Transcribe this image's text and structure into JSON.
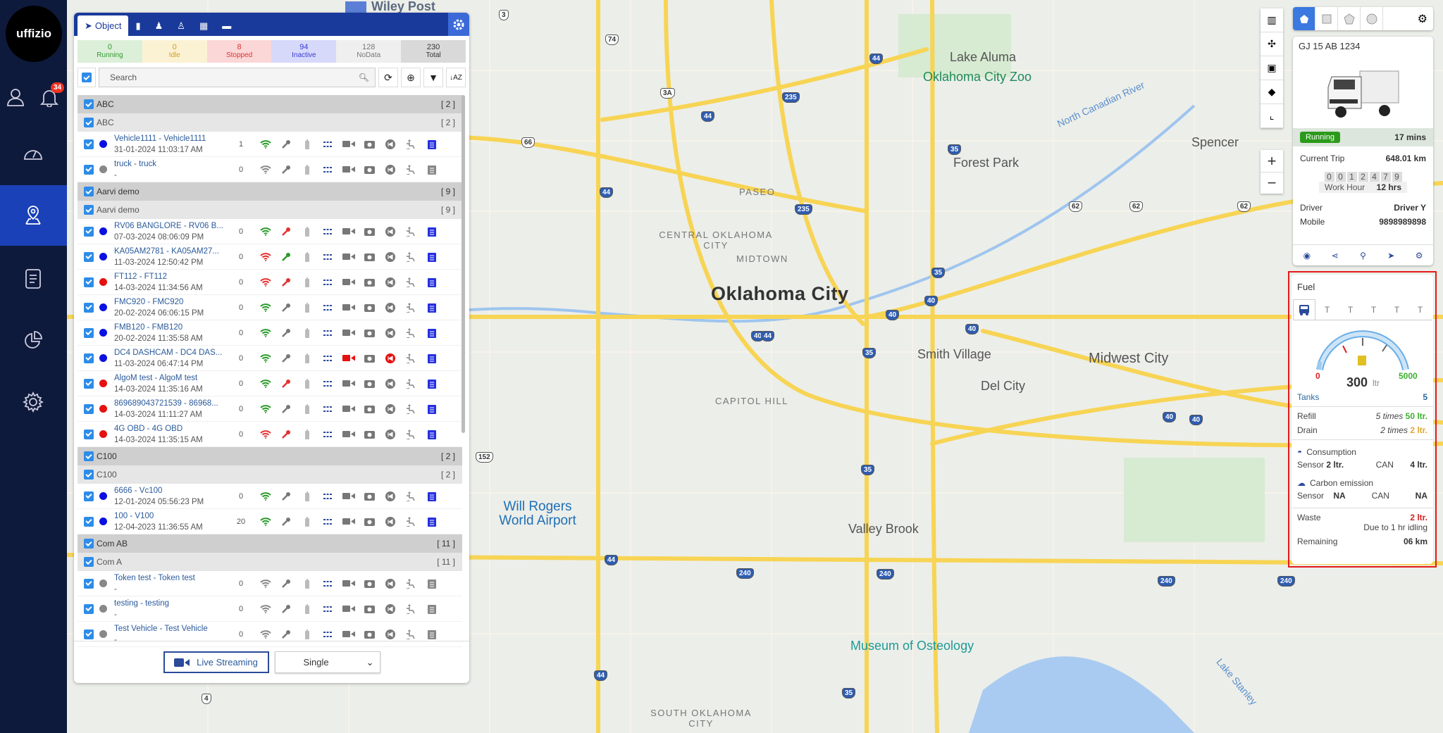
{
  "app": {
    "logo": "uffizio",
    "notification_count": "34"
  },
  "sidebar": {
    "items": [
      {
        "icon": "dashboard-gauge-icon"
      },
      {
        "icon": "tracking-map-pin-icon",
        "active": true
      },
      {
        "icon": "reports-document-icon"
      },
      {
        "icon": "analytics-pie-icon"
      },
      {
        "icon": "settings-gear-icon"
      }
    ]
  },
  "map": {
    "labels": {
      "city": "Oklahoma City",
      "forest_park": "Forest Park",
      "lake_aluma": "Lake Aluma",
      "zoo": "Oklahoma City Zoo",
      "spencer": "Spencer",
      "paseo": "PASEO",
      "central": "CENTRAL OKLAHOMA CITY",
      "midtown": "MIDTOWN",
      "smith": "Smith Village",
      "midwest": "Midwest City",
      "del_city": "Del City",
      "capitol": "CAPITOL HILL",
      "airport": "Will Rogers World Airport",
      "valley": "Valley Brook",
      "museum": "Museum of Osteology",
      "south": "SOUTH OKLAHOMA CITY",
      "river": "North Canadian River",
      "lake_stanley": "Lake Stanley",
      "wiley": "Wiley Post"
    },
    "shields": [
      "3",
      "74",
      "3A",
      "66",
      "44",
      "235",
      "44",
      "35",
      "44",
      "235",
      "35",
      "40",
      "40",
      "40",
      "40",
      "35",
      "40",
      "44",
      "35",
      "44",
      "240",
      "240",
      "240",
      "240",
      "35",
      "44",
      "4",
      "152",
      "62",
      "62",
      "62",
      "40"
    ]
  },
  "panel": {
    "tabs": {
      "object": "Object"
    },
    "stats": [
      {
        "value": "0",
        "label": "Running",
        "color": "#2e9a2e",
        "bg": "#dcefd9"
      },
      {
        "value": "0",
        "label": "Idle",
        "color": "#d4a017",
        "bg": "#fbf2d4"
      },
      {
        "value": "8",
        "label": "Stopped",
        "color": "#e53030",
        "bg": "#fbd7d7"
      },
      {
        "value": "94",
        "label": "Inactive",
        "color": "#3a3ad0",
        "bg": "#d7d9fb"
      },
      {
        "value": "128",
        "label": "NoData",
        "color": "#777",
        "bg": "#efefef"
      },
      {
        "value": "230",
        "label": "Total",
        "color": "#333",
        "bg": "#d9d9d9"
      }
    ],
    "search_placeholder": "Search",
    "groups": [
      {
        "name": "ABC",
        "count": "[ 2 ]",
        "sub": "ABC",
        "sub_count": "[ 2 ]",
        "vehicles": [
          {
            "name": "Vehicle1111 - Vehicle1111",
            "time": "31-01-2024 11:03:17 AM",
            "dot": "#0a10e0",
            "count": "1",
            "wifi": "#2a9a2a",
            "key": "#777",
            "cam": "#777",
            "rec": "#777",
            "doc": "#2530e0"
          },
          {
            "name": "truck - truck",
            "time": "-",
            "dot": "#888",
            "count": "0",
            "wifi": "#888",
            "key": "#777",
            "cam": "#777",
            "rec": "#777",
            "doc": "#888"
          }
        ]
      },
      {
        "name": "Aarvi demo",
        "count": "[ 9 ]",
        "sub": "Aarvi demo",
        "sub_count": "[ 9 ]",
        "vehicles": [
          {
            "name": "RV06 BANGLORE - RV06 B...",
            "time": "07-03-2024 08:06:09 PM",
            "dot": "#0a10e0",
            "count": "0",
            "wifi": "#2a9a2a",
            "key": "#e53030",
            "cam": "#777",
            "rec": "#777",
            "doc": "#2530e0"
          },
          {
            "name": "KA05AM2781 - KA05AM27...",
            "time": "11-03-2024 12:50:42 PM",
            "dot": "#0a10e0",
            "count": "0",
            "wifi": "#e53030",
            "key": "#2a9a2a",
            "cam": "#777",
            "rec": "#777",
            "doc": "#2530e0"
          },
          {
            "name": "FT112 - FT112",
            "time": "14-03-2024 11:34:56 AM",
            "dot": "#e51010",
            "count": "0",
            "wifi": "#e53030",
            "key": "#e53030",
            "cam": "#777",
            "rec": "#777",
            "doc": "#2530e0"
          },
          {
            "name": "FMC920 - FMC920",
            "time": "20-02-2024 06:06:15 PM",
            "dot": "#0a10e0",
            "count": "0",
            "wifi": "#2a9a2a",
            "key": "#777",
            "cam": "#777",
            "rec": "#777",
            "doc": "#2530e0"
          },
          {
            "name": "FMB120 - FMB120",
            "time": "20-02-2024 11:35:58 AM",
            "dot": "#0a10e0",
            "count": "0",
            "wifi": "#2a9a2a",
            "key": "#777",
            "cam": "#777",
            "rec": "#777",
            "doc": "#2530e0"
          },
          {
            "name": "DC4 DASHCAM - DC4 DAS...",
            "time": "11-03-2024 06:47:14 PM",
            "dot": "#0a10e0",
            "count": "0",
            "wifi": "#2a9a2a",
            "key": "#777",
            "cam": "#e51010",
            "rec": "#e51010",
            "doc": "#2530e0"
          },
          {
            "name": "AlgoM test - AlgoM test",
            "time": "14-03-2024 11:35:16 AM",
            "dot": "#e51010",
            "count": "0",
            "wifi": "#2a9a2a",
            "key": "#e53030",
            "cam": "#777",
            "rec": "#777",
            "doc": "#2530e0"
          },
          {
            "name": "869689043721539 - 86968...",
            "time": "14-03-2024 11:11:27 AM",
            "dot": "#e51010",
            "count": "0",
            "wifi": "#2a9a2a",
            "key": "#777",
            "cam": "#777",
            "rec": "#777",
            "doc": "#2530e0"
          },
          {
            "name": "4G OBD - 4G OBD",
            "time": "14-03-2024 11:35:15 AM",
            "dot": "#e51010",
            "count": "0",
            "wifi": "#e53030",
            "key": "#e53030",
            "cam": "#777",
            "rec": "#777",
            "doc": "#2530e0"
          }
        ]
      },
      {
        "name": "C100",
        "count": "[ 2 ]",
        "sub": "C100",
        "sub_count": "[ 2 ]",
        "vehicles": [
          {
            "name": "6666 - Vc100",
            "time": "12-01-2024 05:56:23 PM",
            "dot": "#0a10e0",
            "count": "0",
            "wifi": "#2a9a2a",
            "key": "#777",
            "cam": "#777",
            "rec": "#777",
            "doc": "#2530e0"
          },
          {
            "name": "100 - V100",
            "time": "12-04-2023 11:36:55 AM",
            "dot": "#0a10e0",
            "count": "20",
            "wifi": "#2a9a2a",
            "key": "#777",
            "cam": "#777",
            "rec": "#777",
            "doc": "#2530e0"
          }
        ]
      },
      {
        "name": "Com AB",
        "count": "[ 11 ]",
        "sub": "Com A",
        "sub_count": "[ 11 ]",
        "vehicles": [
          {
            "name": "Token test - Token test",
            "time": "-",
            "dot": "#888",
            "count": "0",
            "wifi": "#888",
            "key": "#777",
            "cam": "#777",
            "rec": "#777",
            "doc": "#888"
          },
          {
            "name": "testing - testing",
            "time": "-",
            "dot": "#888",
            "count": "0",
            "wifi": "#888",
            "key": "#777",
            "cam": "#777",
            "rec": "#777",
            "doc": "#888"
          },
          {
            "name": "Test Vehicle - Test Vehicle",
            "time": "-",
            "dot": "#888",
            "count": "0",
            "wifi": "#888",
            "key": "#777",
            "cam": "#777",
            "rec": "#777",
            "doc": "#888"
          }
        ]
      }
    ],
    "footer": {
      "live_streaming": "Live Streaming",
      "mode": "Single"
    }
  },
  "vehicle_card": {
    "plate": "GJ 15 AB 1234",
    "status": "Running",
    "status_color": "#2a9a1a",
    "duration": "17 mins",
    "current_trip_label": "Current Trip",
    "current_trip": "648.01 km",
    "odometer": [
      "0",
      "0",
      "1",
      "2",
      "4",
      "7",
      "9"
    ],
    "work_hour_label": "Work Hour",
    "work_hour": "12 hrs",
    "driver_label": "Driver",
    "driver": "Driver Y",
    "mobile_label": "Mobile",
    "mobile": "9898989898"
  },
  "fuel": {
    "title": "Fuel",
    "gauge": {
      "min": "0",
      "max": "5000",
      "value": "300",
      "unit": "ltr",
      "min_color": "#e02020",
      "max_color": "#3cb030"
    },
    "tanks_label": "Tanks",
    "tanks": "5",
    "refill_label": "Refill",
    "refill_times": "5 times",
    "refill_amount": "50 ltr.",
    "drain_label": "Drain",
    "drain_times": "2 times",
    "drain_amount": "2 ltr.",
    "consumption_label": "Consumption",
    "sensor_label": "Sensor",
    "can_label": "CAN",
    "consumption_sensor": "2 ltr.",
    "consumption_can": "4 ltr.",
    "carbon_label": "Carbon emission",
    "carbon_sensor": "NA",
    "carbon_can": "NA",
    "waste_label": "Waste",
    "waste": "2 ltr.",
    "waste_note": "Due to 1 hr idling",
    "remaining_label": "Remaining",
    "remaining": "06 km"
  }
}
